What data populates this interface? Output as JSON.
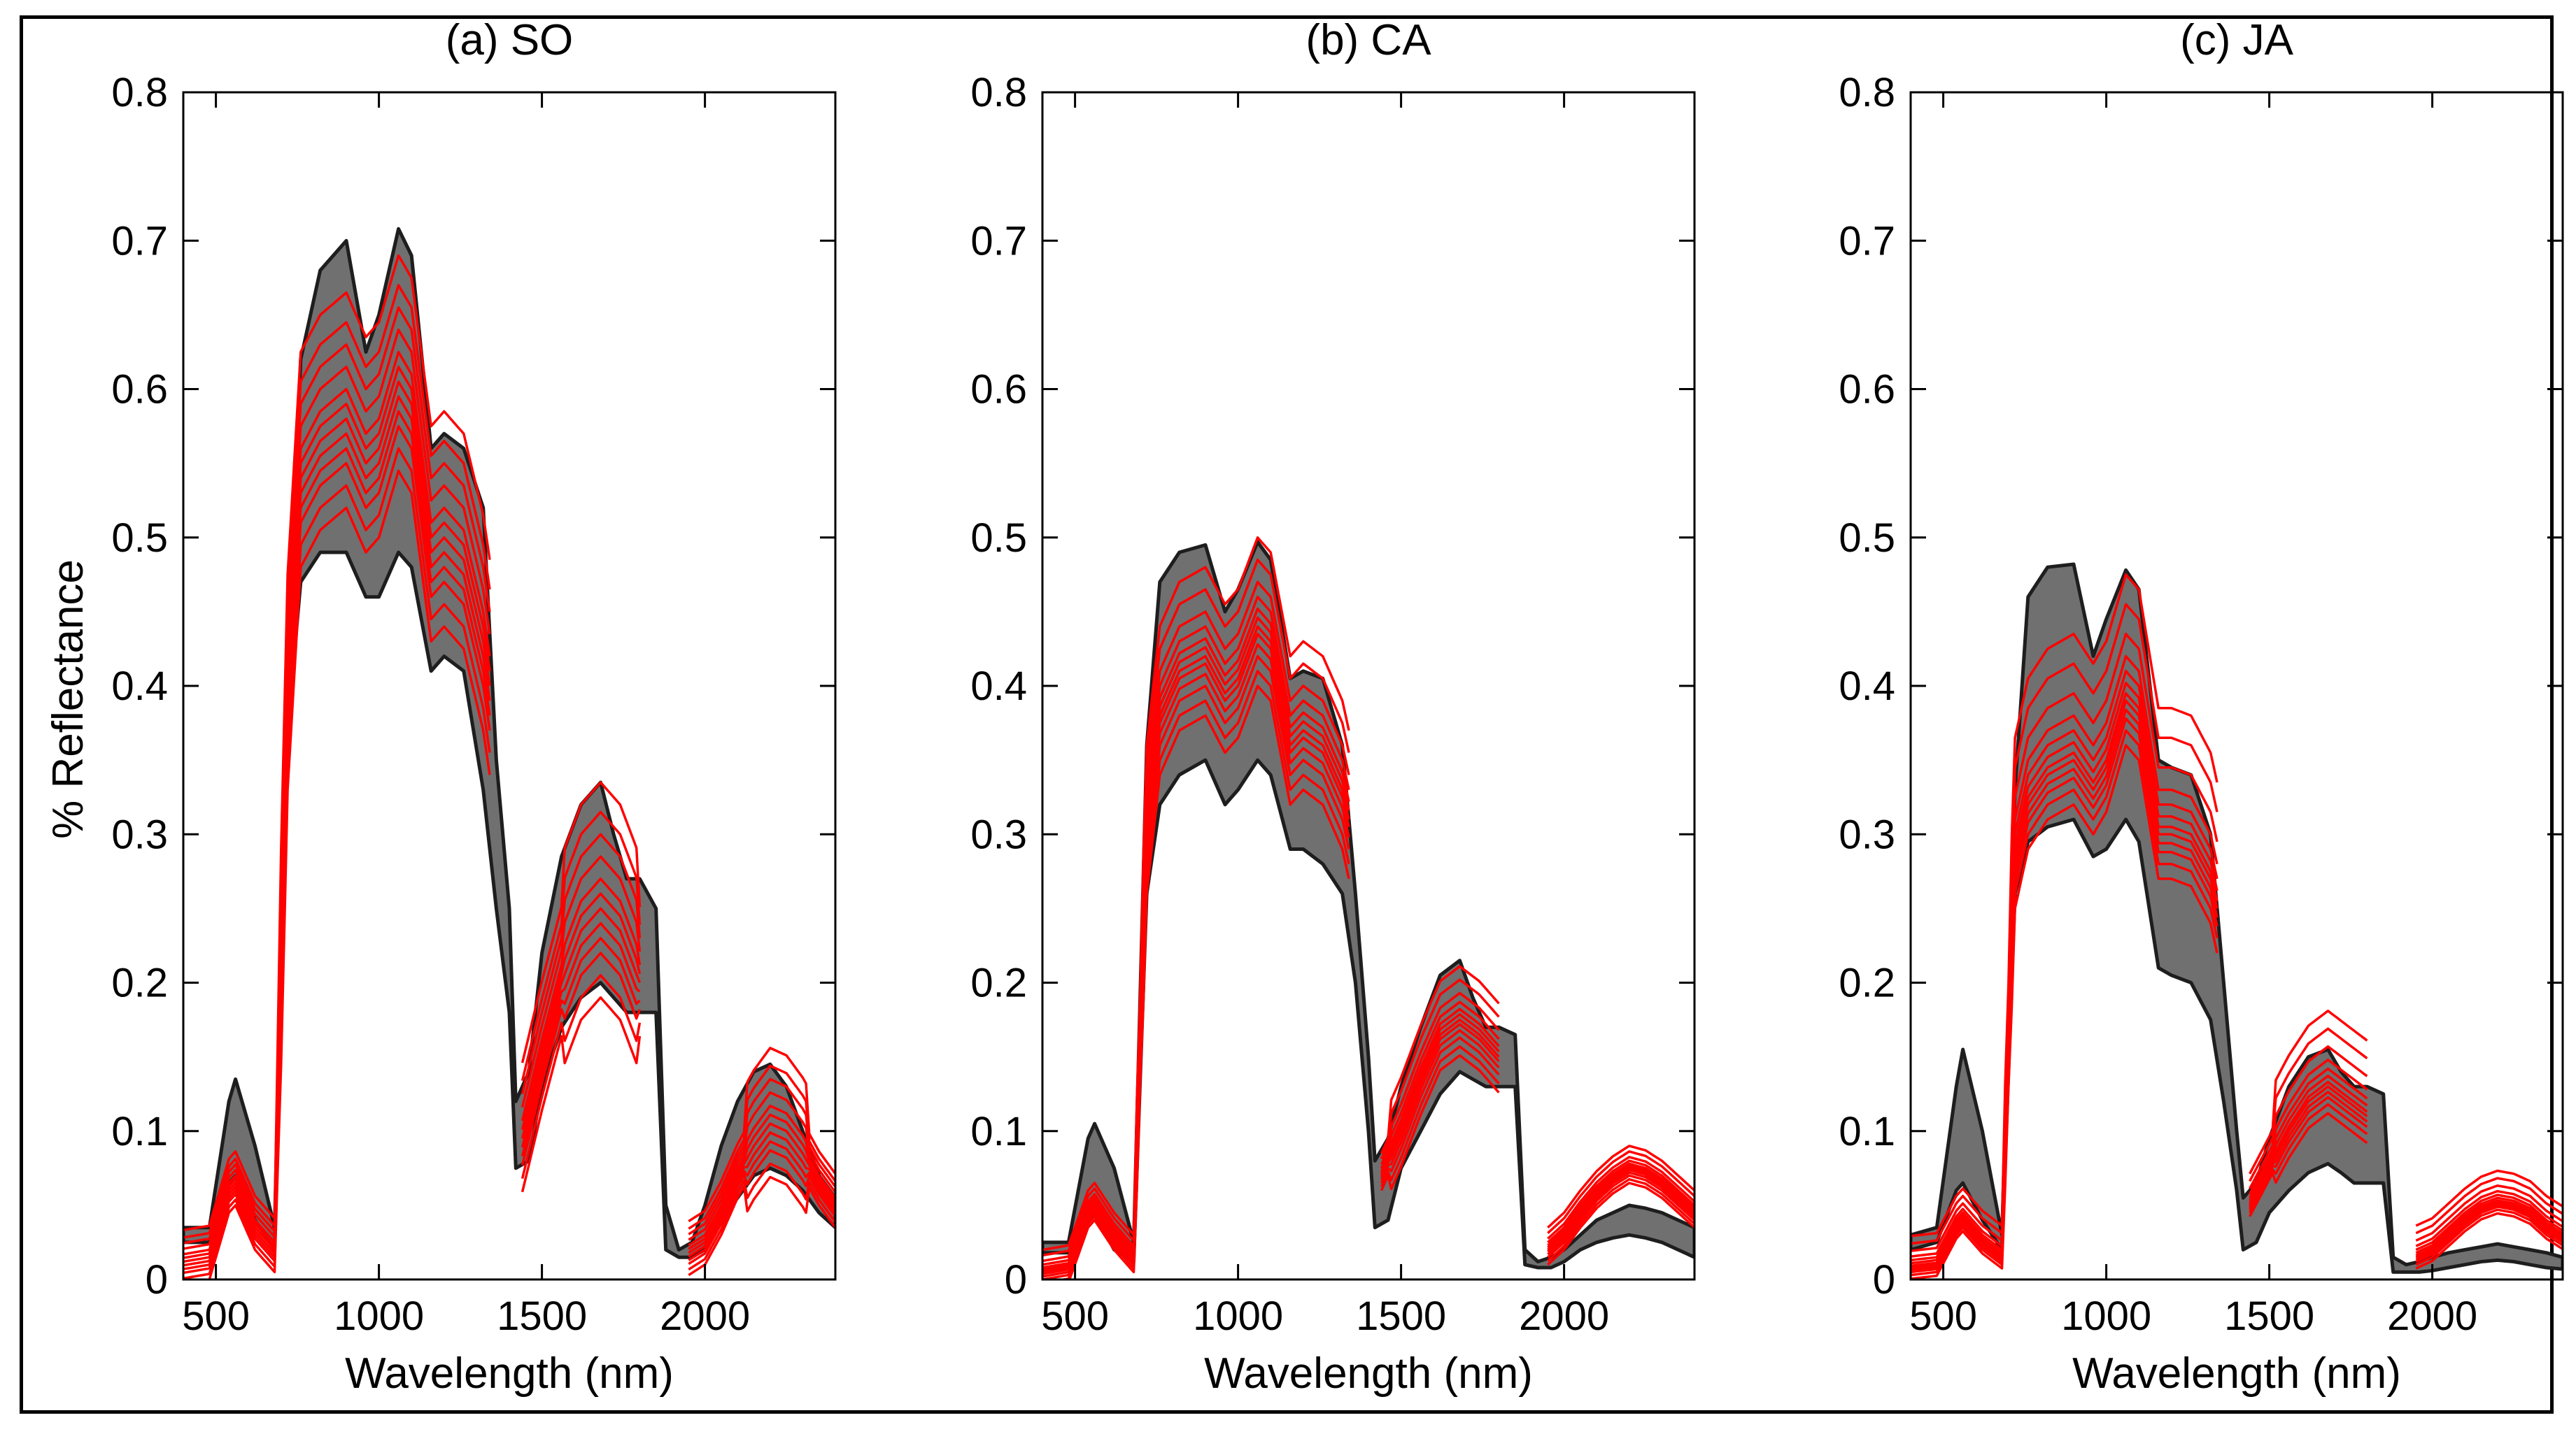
{
  "figure": {
    "ylabel": "% Reflectance",
    "xlabel": "Wavelength (nm)",
    "colors": {
      "envelope": "#707070",
      "envelope_edge": "#1e1e1e",
      "spectra": "#ff0000",
      "axes": "#000000"
    }
  },
  "chart_data": [
    {
      "type": "area",
      "title": "(a) SO",
      "xlabel": "Wavelength (nm)",
      "ylabel": "% Reflectance",
      "xlim": [
        400,
        2400
      ],
      "ylim": [
        0,
        0.8
      ],
      "xticks": [
        500,
        1000,
        1500,
        2000
      ],
      "yticks": [
        0,
        0.1,
        0.2,
        0.3,
        0.4,
        0.5,
        0.6,
        0.7,
        0.8
      ],
      "segments": [
        [
          400,
          1340
        ],
        [
          1440,
          1800
        ],
        [
          1950,
          2400
        ]
      ],
      "envelope": {
        "x": [
          400,
          480,
          540,
          560,
          620,
          680,
          720,
          760,
          820,
          900,
          960,
          1000,
          1060,
          1100,
          1160,
          1200,
          1260,
          1320,
          1360,
          1400,
          1420,
          1460,
          1500,
          1560,
          1620,
          1680,
          1720,
          1760,
          1800,
          1850,
          1880,
          1920,
          1960,
          2000,
          2050,
          2100,
          2150,
          2200,
          2250,
          2300,
          2350,
          2400
        ],
        "upper": [
          0.035,
          0.035,
          0.12,
          0.135,
          0.09,
          0.035,
          0.4,
          0.62,
          0.68,
          0.7,
          0.625,
          0.65,
          0.708,
          0.69,
          0.56,
          0.57,
          0.56,
          0.52,
          0.35,
          0.25,
          0.12,
          0.14,
          0.22,
          0.285,
          0.32,
          0.335,
          0.3,
          0.27,
          0.27,
          0.25,
          0.05,
          0.02,
          0.025,
          0.05,
          0.09,
          0.12,
          0.14,
          0.145,
          0.13,
          0.1,
          0.07,
          0.055
        ],
        "lower": [
          0.025,
          0.025,
          0.065,
          0.07,
          0.04,
          0.02,
          0.37,
          0.47,
          0.49,
          0.49,
          0.46,
          0.46,
          0.49,
          0.48,
          0.41,
          0.42,
          0.41,
          0.33,
          0.25,
          0.18,
          0.075,
          0.08,
          0.13,
          0.17,
          0.19,
          0.2,
          0.19,
          0.18,
          0.18,
          0.18,
          0.02,
          0.015,
          0.015,
          0.02,
          0.04,
          0.055,
          0.07,
          0.075,
          0.07,
          0.06,
          0.045,
          0.035
        ]
      },
      "spectra": {
        "base_x": [
          400,
          480,
          540,
          560,
          620,
          680,
          720,
          760,
          820,
          900,
          960,
          1000,
          1060,
          1100,
          1160,
          1200,
          1260,
          1320,
          1340,
          1440,
          1500,
          1560,
          1620,
          1680,
          1740,
          1800,
          1950,
          2000,
          2050,
          2100,
          2150,
          2200,
          2250,
          2300,
          2350,
          2400
        ],
        "base_y": [
          0.012,
          0.015,
          0.06,
          0.065,
          0.035,
          0.02,
          0.39,
          0.54,
          0.565,
          0.58,
          0.55,
          0.56,
          0.605,
          0.59,
          0.49,
          0.5,
          0.485,
          0.43,
          0.4,
          0.095,
          0.15,
          0.2,
          0.235,
          0.25,
          0.235,
          0.2,
          0.018,
          0.025,
          0.045,
          0.07,
          0.09,
          0.105,
          0.1,
          0.085,
          0.065,
          0.05
        ],
        "offsets": [
          -0.06,
          -0.045,
          -0.03,
          -0.02,
          -0.01,
          0.0,
          0.01,
          0.02,
          0.035,
          0.05,
          0.065,
          0.085
        ]
      }
    },
    {
      "type": "area",
      "title": "(b) CA",
      "xlabel": "Wavelength (nm)",
      "ylabel": "",
      "xlim": [
        400,
        2400
      ],
      "ylim": [
        0,
        0.8
      ],
      "xticks": [
        500,
        1000,
        1500,
        2000
      ],
      "yticks": [
        0,
        0.1,
        0.2,
        0.3,
        0.4,
        0.5,
        0.6,
        0.7,
        0.8
      ],
      "segments": [
        [
          400,
          1340
        ],
        [
          1440,
          1800
        ],
        [
          1950,
          2400
        ]
      ],
      "envelope": {
        "x": [
          400,
          480,
          540,
          560,
          620,
          680,
          720,
          760,
          820,
          900,
          960,
          1000,
          1060,
          1100,
          1160,
          1200,
          1260,
          1320,
          1360,
          1400,
          1420,
          1460,
          1500,
          1560,
          1620,
          1680,
          1720,
          1760,
          1800,
          1850,
          1880,
          1920,
          1960,
          2000,
          2050,
          2100,
          2150,
          2200,
          2250,
          2300,
          2350,
          2400
        ],
        "upper": [
          0.025,
          0.025,
          0.095,
          0.105,
          0.075,
          0.025,
          0.36,
          0.47,
          0.49,
          0.495,
          0.45,
          0.465,
          0.497,
          0.485,
          0.405,
          0.41,
          0.405,
          0.36,
          0.26,
          0.15,
          0.08,
          0.095,
          0.13,
          0.17,
          0.205,
          0.215,
          0.19,
          0.17,
          0.17,
          0.165,
          0.02,
          0.012,
          0.015,
          0.02,
          0.03,
          0.04,
          0.045,
          0.05,
          0.048,
          0.045,
          0.04,
          0.035
        ],
        "lower": [
          0.018,
          0.018,
          0.04,
          0.045,
          0.02,
          0.012,
          0.26,
          0.32,
          0.34,
          0.35,
          0.32,
          0.33,
          0.35,
          0.34,
          0.29,
          0.29,
          0.28,
          0.26,
          0.2,
          0.1,
          0.035,
          0.04,
          0.075,
          0.1,
          0.125,
          0.14,
          0.135,
          0.13,
          0.13,
          0.13,
          0.01,
          0.008,
          0.008,
          0.012,
          0.02,
          0.025,
          0.028,
          0.03,
          0.028,
          0.025,
          0.02,
          0.015
        ]
      },
      "spectra": {
        "base_x": [
          400,
          480,
          540,
          560,
          620,
          680,
          720,
          760,
          820,
          900,
          960,
          1000,
          1060,
          1100,
          1160,
          1200,
          1260,
          1320,
          1340,
          1440,
          1500,
          1560,
          1620,
          1680,
          1740,
          1800,
          1950,
          2000,
          2050,
          2100,
          2150,
          2200,
          2250,
          2300,
          2350,
          2400
        ],
        "base_y": [
          0.005,
          0.008,
          0.045,
          0.05,
          0.03,
          0.015,
          0.3,
          0.38,
          0.41,
          0.42,
          0.395,
          0.405,
          0.44,
          0.43,
          0.36,
          0.37,
          0.36,
          0.33,
          0.31,
          0.07,
          0.1,
          0.135,
          0.165,
          0.175,
          0.165,
          0.15,
          0.02,
          0.03,
          0.045,
          0.058,
          0.068,
          0.075,
          0.072,
          0.065,
          0.055,
          0.045
        ],
        "offsets": [
          -0.04,
          -0.03,
          -0.02,
          -0.012,
          -0.005,
          0.0,
          0.006,
          0.012,
          0.02,
          0.03,
          0.045,
          0.06
        ]
      }
    },
    {
      "type": "area",
      "title": "(c) JA",
      "xlabel": "Wavelength (nm)",
      "ylabel": "",
      "xlim": [
        400,
        2400
      ],
      "ylim": [
        0,
        0.8
      ],
      "xticks": [
        500,
        1000,
        1500,
        2000
      ],
      "yticks": [
        0,
        0.1,
        0.2,
        0.3,
        0.4,
        0.5,
        0.6,
        0.7,
        0.8
      ],
      "segments": [
        [
          400,
          1340
        ],
        [
          1440,
          1800
        ],
        [
          1950,
          2400
        ]
      ],
      "envelope": {
        "x": [
          400,
          480,
          540,
          560,
          620,
          680,
          720,
          760,
          820,
          900,
          960,
          1000,
          1060,
          1100,
          1160,
          1200,
          1260,
          1320,
          1360,
          1400,
          1420,
          1460,
          1500,
          1560,
          1620,
          1680,
          1720,
          1760,
          1800,
          1850,
          1880,
          1920,
          1960,
          2000,
          2050,
          2100,
          2150,
          2200,
          2250,
          2300,
          2350,
          2400
        ],
        "upper": [
          0.03,
          0.035,
          0.13,
          0.155,
          0.1,
          0.03,
          0.33,
          0.46,
          0.48,
          0.482,
          0.42,
          0.445,
          0.478,
          0.465,
          0.35,
          0.345,
          0.34,
          0.3,
          0.2,
          0.1,
          0.055,
          0.065,
          0.095,
          0.13,
          0.15,
          0.155,
          0.14,
          0.13,
          0.13,
          0.125,
          0.015,
          0.01,
          0.012,
          0.015,
          0.018,
          0.02,
          0.022,
          0.024,
          0.022,
          0.02,
          0.018,
          0.015
        ],
        "lower": [
          0.02,
          0.025,
          0.06,
          0.065,
          0.04,
          0.02,
          0.26,
          0.295,
          0.305,
          0.31,
          0.285,
          0.29,
          0.31,
          0.295,
          0.21,
          0.205,
          0.2,
          0.175,
          0.12,
          0.06,
          0.02,
          0.025,
          0.045,
          0.06,
          0.072,
          0.078,
          0.072,
          0.065,
          0.065,
          0.065,
          0.005,
          0.005,
          0.005,
          0.006,
          0.008,
          0.01,
          0.012,
          0.013,
          0.012,
          0.01,
          0.008,
          0.007
        ]
      },
      "spectra": {
        "base_x": [
          400,
          480,
          540,
          560,
          620,
          680,
          720,
          760,
          820,
          900,
          960,
          1000,
          1060,
          1100,
          1160,
          1200,
          1260,
          1320,
          1340,
          1440,
          1500,
          1560,
          1620,
          1680,
          1740,
          1800,
          1950,
          2000,
          2050,
          2100,
          2150,
          2200,
          2250,
          2300,
          2350,
          2400
        ],
        "base_y": [
          0.008,
          0.01,
          0.035,
          0.04,
          0.025,
          0.015,
          0.28,
          0.32,
          0.34,
          0.35,
          0.33,
          0.345,
          0.39,
          0.38,
          0.3,
          0.3,
          0.295,
          0.27,
          0.25,
          0.05,
          0.075,
          0.1,
          0.12,
          0.13,
          0.12,
          0.11,
          0.015,
          0.02,
          0.03,
          0.04,
          0.048,
          0.052,
          0.05,
          0.045,
          0.035,
          0.028
        ],
        "offsets": [
          -0.03,
          -0.02,
          -0.012,
          -0.006,
          0.0,
          0.005,
          0.012,
          0.02,
          0.03,
          0.045,
          0.065,
          0.085
        ]
      }
    }
  ]
}
